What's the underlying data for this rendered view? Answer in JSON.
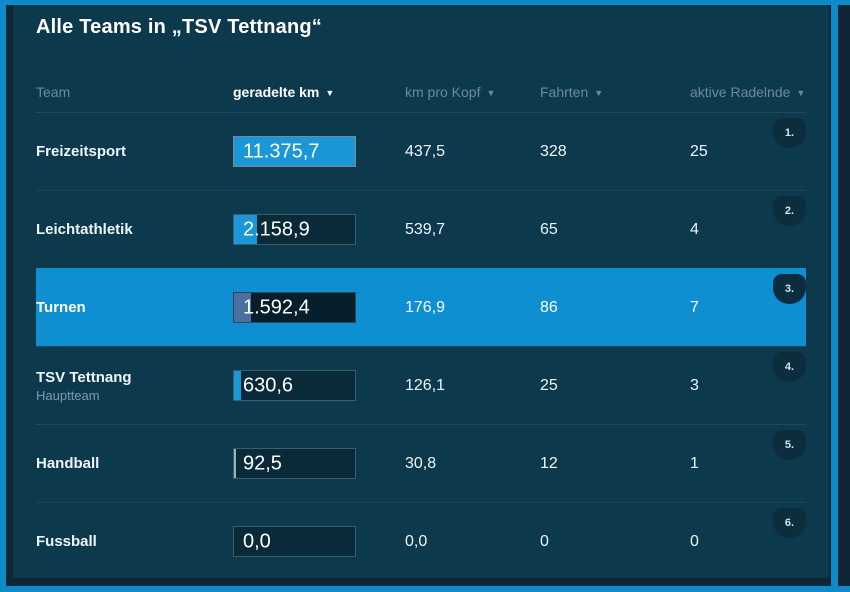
{
  "title": "Alle Teams in „TSV Tettnang“",
  "icons": {
    "sort_desc": "▼"
  },
  "colors": {
    "frame_blue": "#0f8ac8",
    "panel": "#0d394d",
    "accent": "#1b96d6",
    "highlight": "#0d8fd2",
    "bar_bg": "#0a2a3a",
    "badge": "#0c2d3e",
    "muted": "#6b8b9b"
  },
  "table": {
    "columns": [
      {
        "label": "Team",
        "sortable": false,
        "active": false
      },
      {
        "label": "geradelte km",
        "sortable": true,
        "active": true
      },
      {
        "label": "km pro Kopf",
        "sortable": true,
        "active": false
      },
      {
        "label": "Fahrten",
        "sortable": true,
        "active": false
      },
      {
        "label": "aktive Radelnde",
        "sortable": true,
        "active": false
      }
    ],
    "rows": [
      {
        "rank": "1.",
        "team": "Freizeitsport",
        "subtitle": "",
        "km": "11.375,7",
        "bar_pct": 100,
        "bar_color": "#1b96d6",
        "km_pro_kopf": "437,5",
        "fahrten": "328",
        "aktive": "25",
        "highlighted": false
      },
      {
        "rank": "2.",
        "team": "Leichtathletik",
        "subtitle": "",
        "km": "2.158,9",
        "bar_pct": 19,
        "bar_color": "#1b96d6",
        "km_pro_kopf": "539,7",
        "fahrten": "65",
        "aktive": "4",
        "highlighted": false
      },
      {
        "rank": "3.",
        "team": "Turnen",
        "subtitle": "",
        "km": "1.592,4",
        "bar_pct": 14,
        "bar_color": "#4b6fa0",
        "km_pro_kopf": "176,9",
        "fahrten": "86",
        "aktive": "7",
        "highlighted": true
      },
      {
        "rank": "4.",
        "team": "TSV Tettnang",
        "subtitle": "Hauptteam",
        "km": "630,6",
        "bar_pct": 5.7,
        "bar_color": "#1b96d6",
        "km_pro_kopf": "126,1",
        "fahrten": "25",
        "aktive": "3",
        "highlighted": false
      },
      {
        "rank": "5.",
        "team": "Handball",
        "subtitle": "",
        "km": "92,5",
        "bar_pct": 1.6,
        "bar_color": "#8fb4c4",
        "km_pro_kopf": "30,8",
        "fahrten": "12",
        "aktive": "1",
        "highlighted": false
      },
      {
        "rank": "6.",
        "team": "Fussball",
        "subtitle": "",
        "km": "0,0",
        "bar_pct": 0,
        "bar_color": "#1b96d6",
        "km_pro_kopf": "0,0",
        "fahrten": "0",
        "aktive": "0",
        "highlighted": false
      }
    ]
  }
}
